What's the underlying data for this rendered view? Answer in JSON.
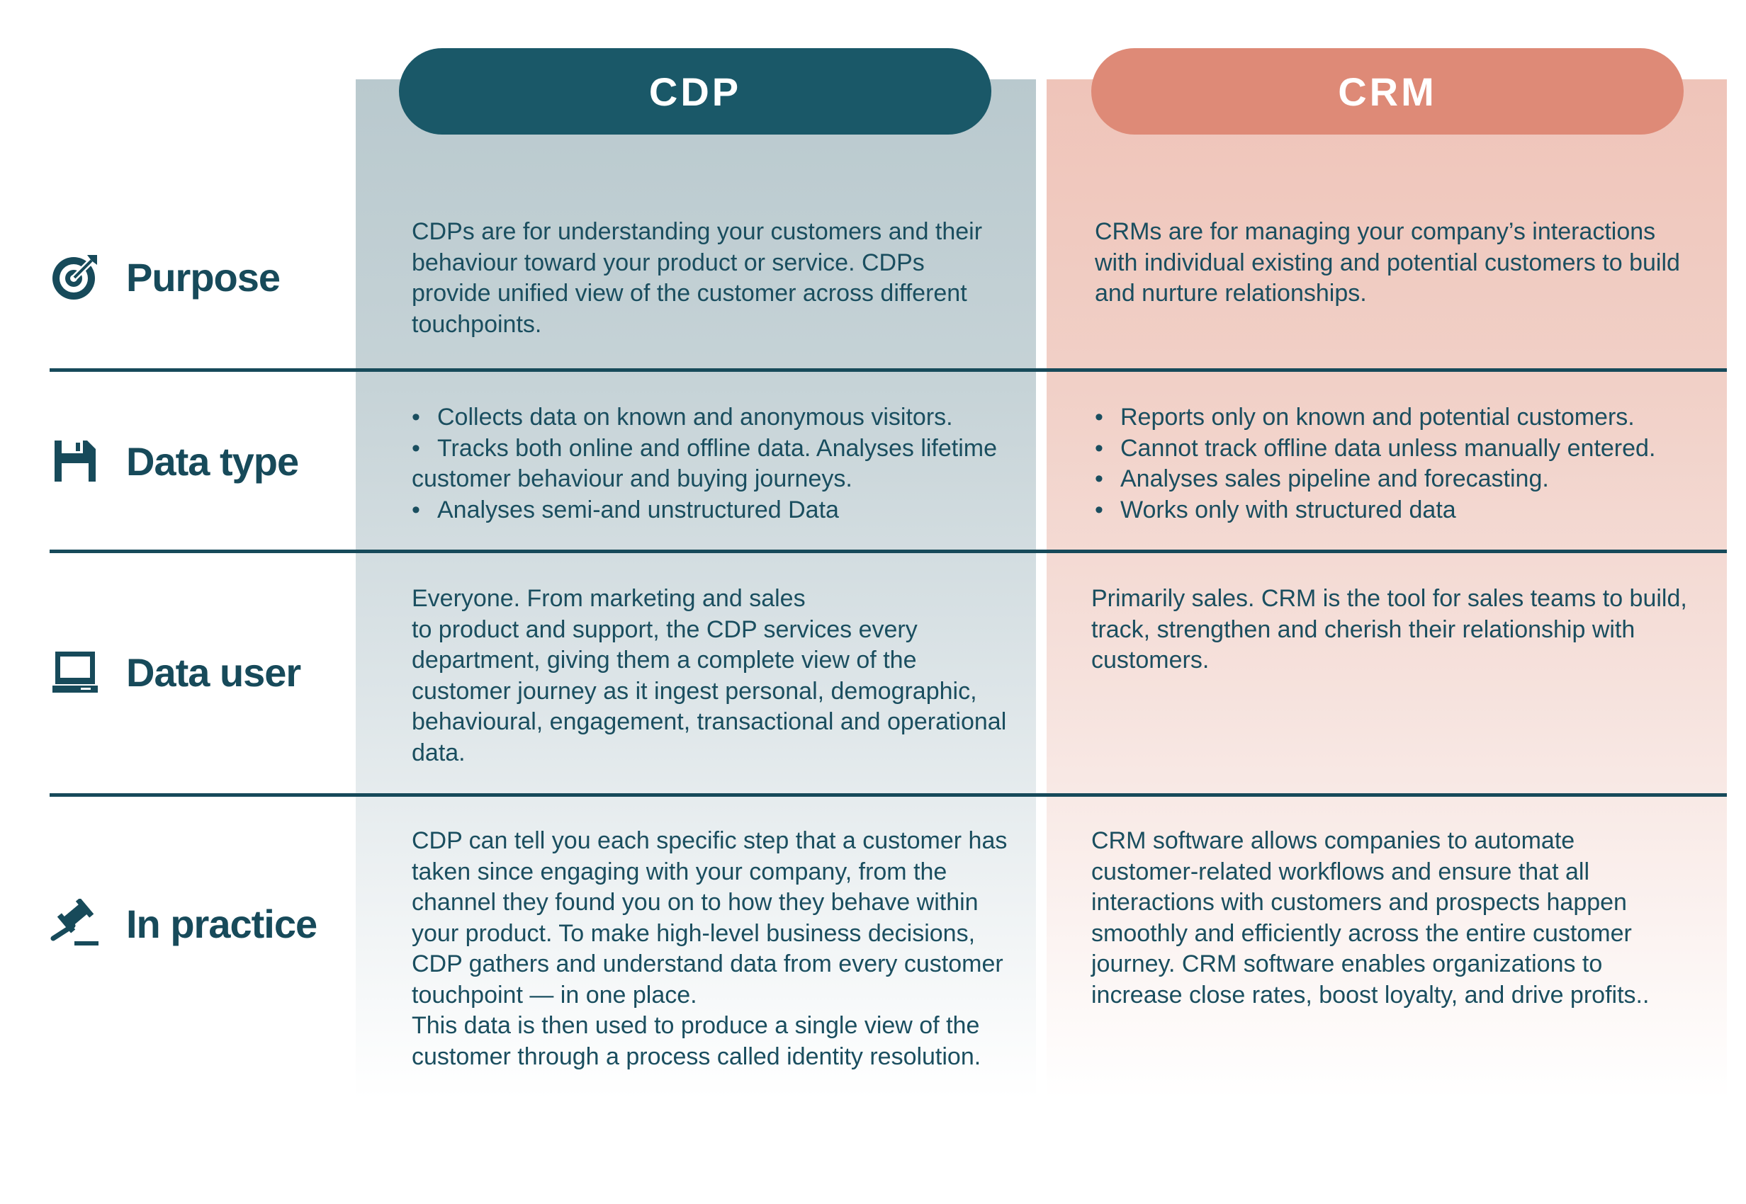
{
  "columns": [
    {
      "key": "cdp",
      "title": "CDP",
      "color": "#1a5868"
    },
    {
      "key": "crm",
      "title": "CRM",
      "color": "#de8a77"
    }
  ],
  "rows": [
    {
      "label": "Purpose",
      "icon": "target-icon",
      "cdp": "CDPs are for understanding your customers and their behaviour toward your product or service. CDPs provide unified view of the customer across different touchpoints.",
      "crm": "CRMs are for managing your company’s interactions with individual existing and potential customers to build and nurture relationships."
    },
    {
      "label": "Data type",
      "icon": "floppy-disk-icon",
      "cdp": [
        "Collects data on known and anonymous visitors.",
        "Tracks both online and offline data. Analyses lifetime customer behaviour and buying journeys.",
        "Analyses semi-and unstructured Data"
      ],
      "crm": [
        "Reports only on known and potential customers.",
        "Cannot track offline data unless manually entered.",
        "Analyses sales pipeline and forecasting.",
        "Works only with structured data"
      ]
    },
    {
      "label": "Data user",
      "icon": "laptop-icon",
      "cdp": [
        "Everyone. From marketing and sales",
        "to product and support, the CDP services every department, giving them a complete view of the customer journey as it ingest personal, demographic, behavioural, engagement, transactional and operational data."
      ],
      "crm": "Primarily sales. CRM is the tool for sales teams to build, track, strengthen and cherish their relationship with customers."
    },
    {
      "label": "In practice",
      "icon": "gavel-icon",
      "cdp": [
        "CDP can tell you each specific step that a customer has taken since engaging with your company, from the channel they found you on to how they behave within your product. To make high-level business decisions, CDP gathers and understand data from every customer touchpoint — in one place.",
        "This data is then used to produce a single view of the customer through a process called identity resolution."
      ],
      "crm": "CRM software allows companies to automate customer-related workflows and ensure that all interactions with customers and prospects happen smoothly and efficiently across the entire customer journey. CRM software enables organizations to increase close rates, boost loyalty, and drive profits.."
    }
  ]
}
